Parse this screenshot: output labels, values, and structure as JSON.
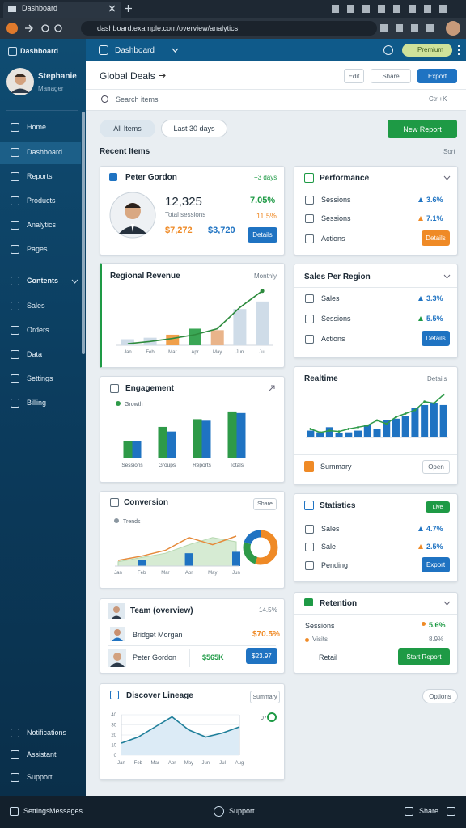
{
  "browser": {
    "tab_title": "Dashboard",
    "url": "dashboard.example.com/overview/analytics"
  },
  "sidebar": {
    "brand": "Dashboard",
    "user_name": "Stephanie",
    "user_role": "Manager",
    "items": [
      "Home",
      "Dashboard",
      "Reports",
      "Products",
      "Analytics",
      "Pages"
    ],
    "section": "Contents",
    "sub_items": [
      "Sales",
      "Orders",
      "Data",
      "Settings",
      "Billing"
    ],
    "footer_items": [
      "Notifications",
      "Assistant",
      "Support"
    ]
  },
  "topbar": {
    "title": "Dashboard",
    "badge": "Premium"
  },
  "header": {
    "title": "Global Deals",
    "buttons": [
      "Edit",
      "Share",
      "Export"
    ],
    "search": "Search items",
    "search_hint": "Ctrl+K"
  },
  "filters": {
    "chips": [
      "All Items",
      "Last 30 days"
    ],
    "action": "New Report"
  },
  "section": {
    "title": "Recent Items",
    "meta": "Sort"
  },
  "profile_card": {
    "title": "Peter Gordon",
    "tag": "+3 days",
    "total": "12,325",
    "total_label": "Total sessions",
    "rate": "7.05%",
    "rate2": "11.5%",
    "amount1": "$7,272",
    "amount2": "$3,720",
    "button": "Details"
  },
  "revenue_card": {
    "title": "Regional Revenue",
    "meta": "Monthly",
    "categories": [
      "Jan",
      "Feb",
      "Mar",
      "Apr",
      "May",
      "Jun",
      "Jul"
    ],
    "bars": [
      8,
      10,
      14,
      22,
      20,
      48,
      58
    ],
    "bar_colors": [
      "#cfdce8",
      "#cfdce8",
      "#f0a04b",
      "#3aa655",
      "#e9b48a",
      "#cfdce8",
      "#cfdce8"
    ],
    "line": [
      2,
      5,
      9,
      14,
      22,
      50,
      72
    ],
    "line_color": "#2e8b3e",
    "ylim": [
      0,
      75
    ]
  },
  "engagement_card": {
    "title": "Engagement",
    "legend": "Growth",
    "categories": [
      "Sessions",
      "Groups",
      "Reports",
      "Totals"
    ],
    "series": [
      {
        "color": "#2e9a48",
        "values": [
          22,
          40,
          50,
          60
        ]
      },
      {
        "color": "#1f73c2",
        "values": [
          22,
          34,
          48,
          58
        ]
      }
    ],
    "ylim": [
      0,
      62
    ]
  },
  "conversion_card": {
    "title": "Conversion",
    "button": "Share",
    "legend": "Trends",
    "categories": [
      "Jan",
      "Feb",
      "Mar",
      "Apr",
      "May",
      "Jun"
    ],
    "area": [
      6,
      12,
      18,
      30,
      40,
      34
    ],
    "line": [
      8,
      14,
      22,
      40,
      30,
      42
    ],
    "bars": [
      null,
      8,
      null,
      18,
      null,
      20
    ],
    "ylim": [
      0,
      50
    ],
    "donut": [
      55,
      25,
      20
    ],
    "donut_colors": [
      "#ef8a26",
      "#2e9a48",
      "#1f73c2"
    ]
  },
  "team_card": {
    "title": "Team (overview)",
    "rate": "14.5%",
    "rows": [
      {
        "name": "Bridget Morgan",
        "value": "$70.5%"
      },
      {
        "name": "Peter Gordon",
        "value": "$565K",
        "button": "$23.97"
      }
    ]
  },
  "lineage_card": {
    "title": "Discover Lineage",
    "badge": "Summary",
    "legend_value": "07",
    "categories": [
      "Jan",
      "Feb",
      "Mar",
      "Apr",
      "May",
      "Jun",
      "Jul",
      "Aug"
    ],
    "values": [
      12,
      18,
      28,
      38,
      25,
      18,
      22,
      28
    ],
    "ylim": [
      0,
      40
    ],
    "yticks": [
      0,
      10,
      20,
      30,
      40
    ]
  },
  "performance_card": {
    "title": "Performance",
    "rows": [
      {
        "label": "Sessions",
        "value": "3.6%"
      },
      {
        "label": "Sessions",
        "value": "7.1%"
      },
      {
        "label": "Actions",
        "button": "Details"
      }
    ]
  },
  "region_card": {
    "title": "Sales Per Region",
    "rows": [
      {
        "label": "Sales",
        "value": "3.3%"
      },
      {
        "label": "Sessions",
        "value": "5.5%"
      },
      {
        "label": "Actions",
        "button": "Details"
      }
    ]
  },
  "realtime_card": {
    "title": "Realtime",
    "meta": "Details",
    "bars": [
      8,
      6,
      12,
      5,
      6,
      8,
      15,
      10,
      20,
      22,
      25,
      35,
      38,
      40,
      38
    ],
    "line": [
      10,
      6,
      8,
      7,
      10,
      12,
      14,
      20,
      16,
      24,
      28,
      32,
      42,
      40,
      50
    ],
    "ylim": [
      0,
      55
    ],
    "footer": "Summary",
    "button": "Open"
  },
  "statistics_card": {
    "title": "Statistics",
    "badge": "Live",
    "rows": [
      {
        "label": "Sales",
        "value": "4.7%"
      },
      {
        "label": "Sale",
        "value": "2.5%"
      },
      {
        "label": "Pending",
        "button": "Export"
      }
    ]
  },
  "retention_card": {
    "title": "Retention",
    "rows": [
      {
        "label": "Sessions",
        "value": "5.6%"
      },
      {
        "label": "Visits",
        "value": "8.9%"
      },
      {
        "label": "Retail",
        "button": "Start Report"
      }
    ]
  },
  "options_button": "Options",
  "bottom_bar": {
    "items": [
      "Settings",
      "Messages",
      "Support",
      "Share"
    ]
  }
}
